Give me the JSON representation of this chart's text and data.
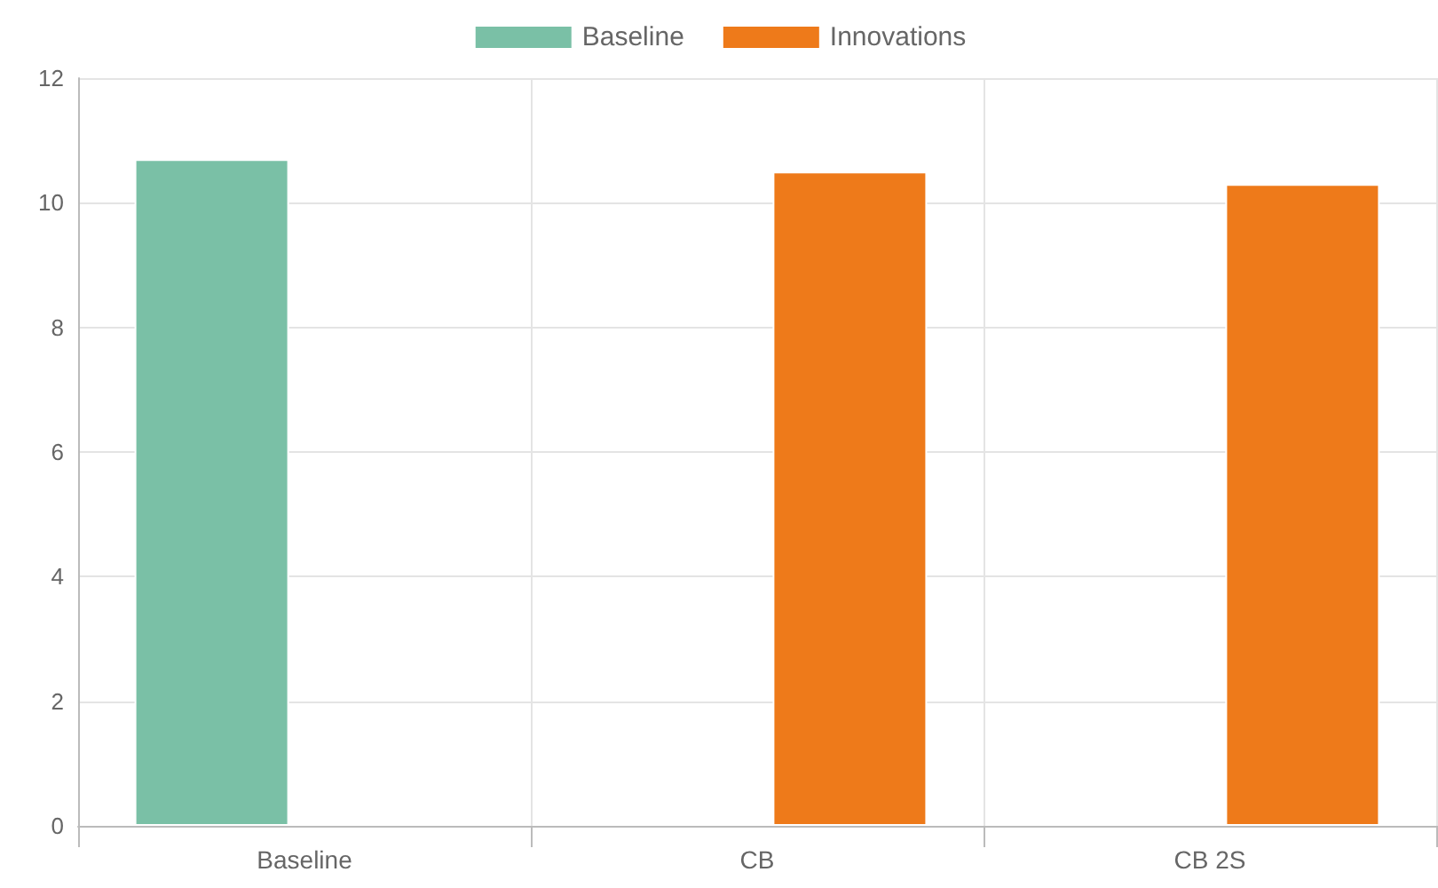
{
  "chart_data": {
    "type": "bar",
    "categories": [
      "Baseline",
      "CB",
      "CB 2S"
    ],
    "series": [
      {
        "name": "Baseline",
        "color": "#7ac0a6",
        "values": [
          10.7,
          null,
          null
        ]
      },
      {
        "name": "Innovations",
        "color": "#ee7a1a",
        "values": [
          null,
          10.5,
          10.3
        ]
      }
    ],
    "ylim": [
      0,
      12
    ],
    "yticks": [
      0,
      2,
      4,
      6,
      8,
      10,
      12
    ],
    "grid": true,
    "legend": "top"
  }
}
